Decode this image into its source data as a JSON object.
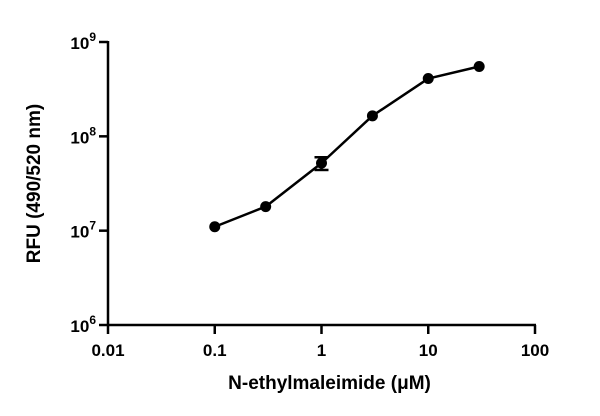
{
  "chart_data": {
    "type": "line",
    "xscale": "log",
    "yscale": "log",
    "xlim": [
      0.01,
      100
    ],
    "ylim": [
      1000000,
      1000000000
    ],
    "xlabel": "N-ethylmaleimide (μM)",
    "ylabel": "RFU (490/520 nm)",
    "xticks": [
      {
        "value": 0.01,
        "label": "0.01"
      },
      {
        "value": 0.1,
        "label": "0.1"
      },
      {
        "value": 1,
        "label": "1"
      },
      {
        "value": 10,
        "label": "10"
      },
      {
        "value": 100,
        "label": "100"
      }
    ],
    "yticks": [
      {
        "value": 1000000,
        "base": "10",
        "exp": "6"
      },
      {
        "value": 10000000,
        "base": "10",
        "exp": "7"
      },
      {
        "value": 100000000,
        "base": "10",
        "exp": "8"
      },
      {
        "value": 1000000000,
        "base": "10",
        "exp": "9"
      }
    ],
    "series": [
      {
        "name": "N-ethylmaleimide",
        "color": "#000000",
        "x": [
          0.1,
          0.3,
          1,
          3,
          10,
          30
        ],
        "y": [
          11000000,
          18000000,
          52000000,
          165000000,
          410000000,
          550000000
        ],
        "err": [
          0,
          0,
          8000000,
          0,
          0,
          0
        ]
      }
    ]
  }
}
